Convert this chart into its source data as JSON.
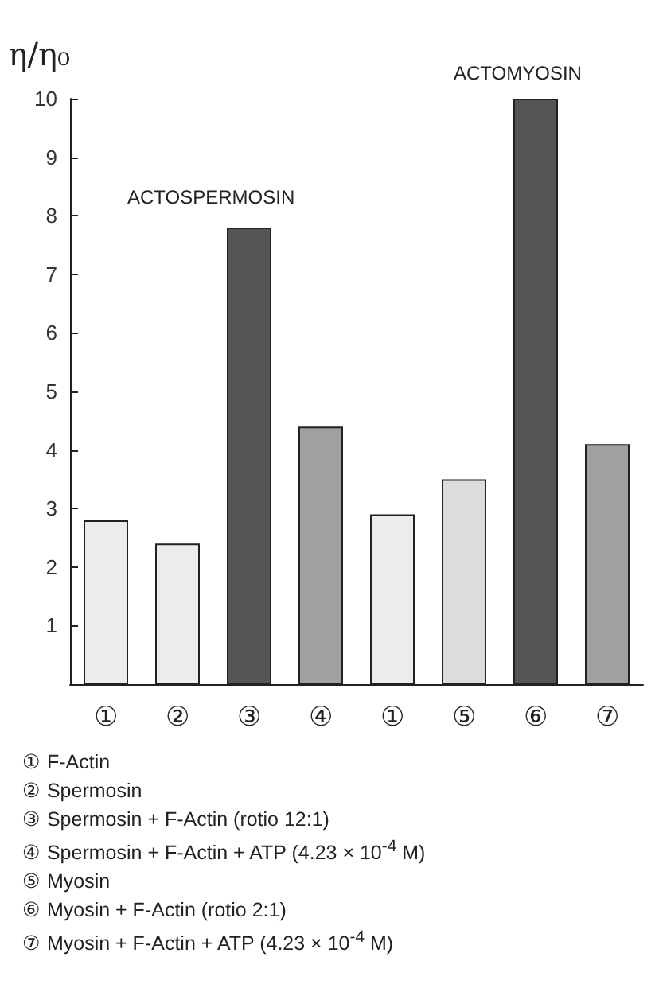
{
  "chart_data": {
    "type": "bar",
    "ylabel": "η/η₀",
    "categories": [
      "①",
      "②",
      "③",
      "④",
      "①",
      "⑤",
      "⑥",
      "⑦"
    ],
    "values": [
      2.8,
      2.4,
      7.8,
      4.4,
      2.9,
      3.5,
      10.0,
      4.1
    ],
    "colors": [
      "#ececec",
      "#ececec",
      "#555555",
      "#a0a0a0",
      "#ececec",
      "#dcdcdc",
      "#555555",
      "#a0a0a0"
    ],
    "ylim": [
      0,
      10
    ],
    "yticks": [
      1,
      2,
      3,
      4,
      5,
      6,
      7,
      8,
      9,
      10
    ],
    "annotations": [
      "ACTOSPERMOSIN",
      "ACTOMYOSIN",
      "① F-Actin",
      "② Spermosin",
      "③ Spermosin + F-Actin (rotio 12:1)",
      "④ Spermosin + F-Actin + ATP (4.23 × 10$^{-4}$ M)",
      "⑤ Myosin",
      "⑥ Myosin + F-Actin (rotio 2:1)",
      "⑦ Myosin + F-Actin + ATP (4.23 × 10$^{-4}$ M)"
    ]
  }
}
